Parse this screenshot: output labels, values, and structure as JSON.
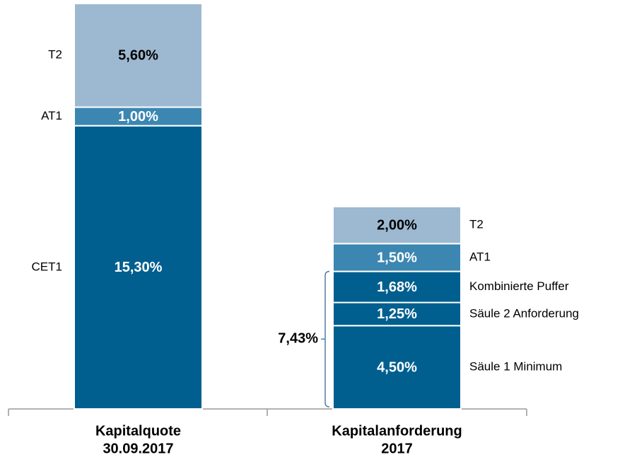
{
  "chart_data": {
    "type": "stacked_bar",
    "categories": [
      [
        "Kapitalquote",
        "30.09.2017"
      ],
      [
        "Kapitalanforderung",
        "2017"
      ]
    ],
    "bars": [
      {
        "segments": [
          {
            "name": "CET1",
            "value": 15.3,
            "value_label": "15,30%",
            "color": "#005f8f"
          },
          {
            "name": "AT1",
            "value": 1.0,
            "value_label": "1,00%",
            "color": "#3c86b2"
          },
          {
            "name": "T2",
            "value": 5.6,
            "value_label": "5,60%",
            "color": "#9db9d1"
          }
        ]
      },
      {
        "segments": [
          {
            "name": "Säule 1 Minimum",
            "value": 4.5,
            "value_label": "4,50%",
            "color": "#005f8f"
          },
          {
            "name": "Säule 2 Anforderung",
            "value": 1.25,
            "value_label": "1,25%",
            "color": "#005f8f"
          },
          {
            "name": "Kombinierte Puffer",
            "value": 1.68,
            "value_label": "1,68%",
            "color": "#005f8f"
          },
          {
            "name": "AT1",
            "value": 1.5,
            "value_label": "1,50%",
            "color": "#3c86b2"
          },
          {
            "name": "T2",
            "value": 2.0,
            "value_label": "2,00%",
            "color": "#9db9d1"
          }
        ]
      }
    ],
    "annotation": {
      "value": 7.43,
      "label": "7,43%"
    }
  }
}
